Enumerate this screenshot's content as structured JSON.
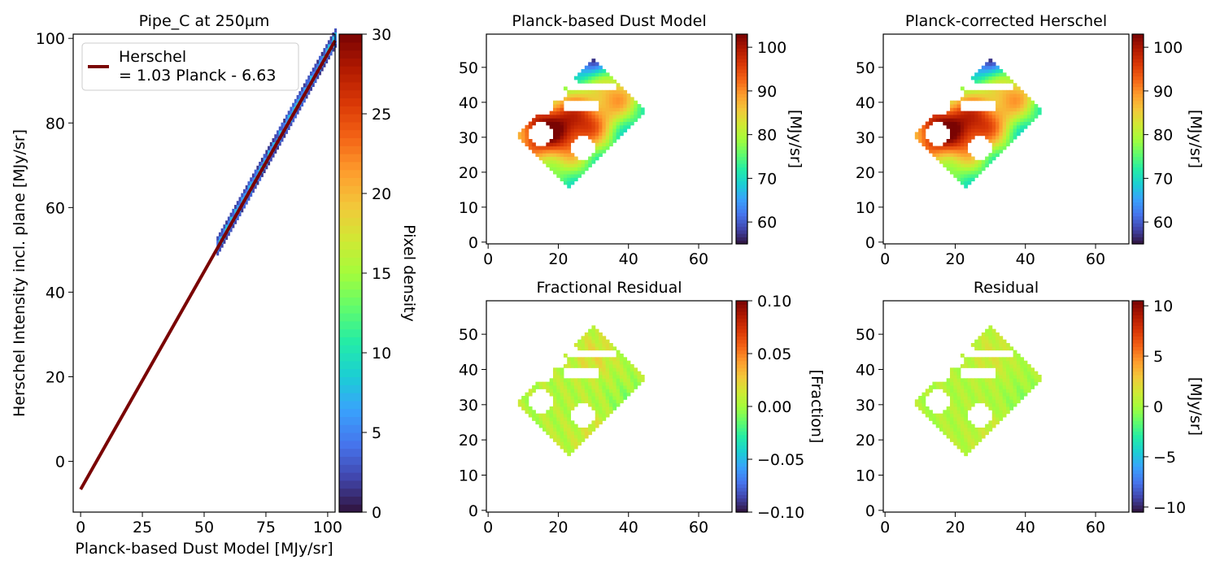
{
  "colors": {
    "line": "#7a0403",
    "cmap": [
      "#30123b",
      "#4145ab",
      "#4675ed",
      "#39a2fc",
      "#1bcfd4",
      "#24eca6",
      "#61fc6c",
      "#a4fc3b",
      "#d1e834",
      "#f3c63a",
      "#fe9b2d",
      "#f36315",
      "#d93806",
      "#b11901",
      "#7a0403"
    ]
  },
  "chart_data": [
    {
      "id": "scatter",
      "type": "heatmap",
      "title": "Pipe_C at 250µm",
      "xlabel": "Planck-based Dust Model [MJy/sr]",
      "ylabel": "Herschel Intensity incl. plane [MJy/sr]",
      "xlim": [
        -3,
        103
      ],
      "ylim": [
        -12,
        101
      ],
      "xticks": [
        0,
        25,
        50,
        75,
        100
      ],
      "yticks": [
        0,
        20,
        40,
        60,
        80,
        100
      ],
      "legend": {
        "line1": "Herschel",
        "line2": "= 1.03 Planck - 6.63",
        "loc": "top-left"
      },
      "fit": {
        "slope": 1.03,
        "intercept": -6.63,
        "x_range": [
          0,
          103
        ]
      },
      "data_x_range": [
        55,
        103
      ],
      "colorbar": {
        "label": "Pixel density",
        "range": [
          0,
          30
        ],
        "ticks": [
          0,
          5,
          10,
          15,
          20,
          25,
          30
        ]
      }
    },
    {
      "id": "map1",
      "type": "heatmap",
      "title": "Planck-based Dust Model",
      "xticks": [
        0,
        20,
        40,
        60
      ],
      "yticks": [
        0,
        10,
        20,
        30,
        40,
        50
      ],
      "xlim": [
        -0.5,
        69.5
      ],
      "ylim": [
        -0.5,
        59.5
      ],
      "colorbar": {
        "label": "[MJy/sr]",
        "range": [
          55,
          103
        ],
        "ticks": [
          60,
          70,
          80,
          90,
          100
        ],
        "tick_labels": [
          "60",
          "70",
          "80",
          "90",
          "100"
        ]
      },
      "mode": "model"
    },
    {
      "id": "map2",
      "type": "heatmap",
      "title": "Planck-corrected Herschel",
      "xticks": [
        0,
        20,
        40,
        60
      ],
      "yticks": [
        0,
        10,
        20,
        30,
        40,
        50
      ],
      "xlim": [
        -0.5,
        69.5
      ],
      "ylim": [
        -0.5,
        59.5
      ],
      "colorbar": {
        "label": "[MJy/sr]",
        "range": [
          55,
          103
        ],
        "ticks": [
          60,
          70,
          80,
          90,
          100
        ],
        "tick_labels": [
          "60",
          "70",
          "80",
          "90",
          "100"
        ]
      },
      "mode": "model"
    },
    {
      "id": "map3",
      "type": "heatmap",
      "title": "Fractional Residual",
      "xticks": [
        0,
        20,
        40,
        60
      ],
      "yticks": [
        0,
        10,
        20,
        30,
        40,
        50
      ],
      "xlim": [
        -0.5,
        69.5
      ],
      "ylim": [
        -0.5,
        59.5
      ],
      "colorbar": {
        "label": "[Fraction]",
        "range": [
          -0.1,
          0.1
        ],
        "ticks": [
          -0.1,
          -0.05,
          0,
          0.05,
          0.1
        ],
        "tick_labels": [
          "−0.10",
          "−0.05",
          "0.00",
          "0.05",
          "0.10"
        ]
      },
      "mode": "resid"
    },
    {
      "id": "map4",
      "type": "heatmap",
      "title": "Residual",
      "xticks": [
        0,
        20,
        40,
        60
      ],
      "yticks": [
        0,
        10,
        20,
        30,
        40,
        50
      ],
      "xlim": [
        -0.5,
        69.5
      ],
      "ylim": [
        -0.5,
        59.5
      ],
      "colorbar": {
        "label": "[MJy/sr]",
        "range": [
          -10.5,
          10.5
        ],
        "ticks": [
          -10,
          -5,
          0,
          5,
          10
        ],
        "tick_labels": [
          "−10",
          "−5",
          "0",
          "5",
          "10"
        ]
      },
      "mode": "resid"
    }
  ]
}
